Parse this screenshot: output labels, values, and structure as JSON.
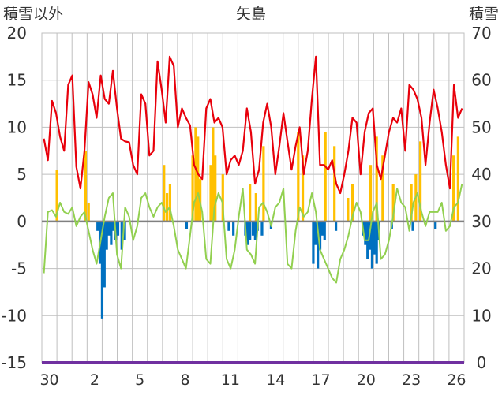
{
  "chart_data": {
    "type": "line",
    "title": "矢島",
    "left_axis_label": "積雪以外",
    "right_axis_label": "積雪",
    "y_left": {
      "min": -15,
      "max": 20,
      "ticks": [
        "20",
        "15",
        "10",
        "5",
        "0",
        "-5",
        "-10",
        "-15"
      ]
    },
    "y_right": {
      "min": 0,
      "max": 70,
      "ticks": [
        "70",
        "60",
        "50",
        "40",
        "30",
        "20",
        "10",
        "0"
      ]
    },
    "x_ticks": [
      "30",
      "2",
      "5",
      "8",
      "11",
      "14",
      "17",
      "20",
      "23",
      "26"
    ],
    "grid": true,
    "colors": {
      "red_series": "#e8000b",
      "green_series": "#92d050",
      "orange_bars": "#ffc000",
      "blue_bars": "#0070c0",
      "purple_series": "#7030a0",
      "zero_line": "#808080",
      "grid": "#bfbfbf"
    },
    "red_series_day_values": [
      8.8,
      6.5,
      12.8,
      11.5,
      9.0,
      7.5,
      14.5,
      15.5,
      5.8,
      3.5,
      7.5,
      14.8,
      13.5,
      11.0,
      15.5,
      13.0,
      12.5,
      16.0,
      12.0,
      8.8,
      8.5,
      8.4,
      6.0,
      5.0,
      13.5,
      12.5,
      7.0,
      7.5,
      17.0,
      14.0,
      10.5,
      17.5,
      16.5,
      10.0,
      12.0,
      11.0,
      10.2,
      6.0,
      5.0,
      4.5,
      12.0,
      13.0,
      10.5,
      11.0,
      10.0,
      5.0,
      6.5,
      7.0,
      6.0,
      7.5,
      12.0,
      9.5,
      4.0,
      5.5,
      10.5,
      12.5,
      10.0,
      5.0,
      8.0,
      11.5,
      8.5,
      5.5,
      8.0,
      10.0,
      5.0,
      7.5,
      13.0,
      17.5,
      6.0,
      6.0,
      5.5,
      6.5,
      4.0,
      3.0,
      5.0,
      7.5,
      11.0,
      10.5,
      5.0,
      9.5,
      11.5,
      12.0,
      6.0,
      4.5,
      7.0,
      9.5,
      11.0,
      10.5,
      12.0,
      7.5,
      14.5,
      14.0,
      13.0,
      11.0,
      6.0,
      10.5,
      14.0,
      12.0,
      9.5,
      6.0,
      3.5,
      14.5,
      11.0,
      12.0
    ],
    "green_series_day_values": [
      -5.5,
      1.0,
      1.2,
      0.5,
      2.0,
      1.0,
      0.8,
      1.5,
      -0.5,
      0.5,
      1.0,
      -1.0,
      -3.0,
      -4.5,
      -2.0,
      0.5,
      2.5,
      3.0,
      -3.5,
      -5.0,
      1.5,
      0.5,
      -2.0,
      -0.5,
      2.5,
      3.0,
      1.5,
      0.5,
      1.5,
      2.0,
      1.0,
      1.5,
      -0.5,
      -3.0,
      -4.0,
      -5.0,
      -1.5,
      2.0,
      3.0,
      1.0,
      -4.0,
      -4.5,
      1.5,
      3.0,
      2.0,
      -4.0,
      -5.0,
      -3.0,
      0.5,
      3.5,
      -3.0,
      -3.5,
      -4.5,
      1.5,
      2.0,
      1.0,
      -0.5,
      1.5,
      2.0,
      3.5,
      -4.5,
      -5.0,
      -1.0,
      1.5,
      0.5,
      1.0,
      3.0,
      1.0,
      -3.0,
      -4.0,
      -5.0,
      -6.0,
      -6.5,
      -4.0,
      -3.0,
      -1.5,
      0.5,
      2.0,
      1.0,
      -2.0,
      -2.0,
      1.0,
      2.0,
      -4.0,
      -3.5,
      -2.0,
      0.5,
      3.5,
      2.0,
      1.5,
      -1.0,
      2.0,
      3.0,
      1.0,
      -0.5,
      1.0,
      1.0,
      1.0,
      2.0,
      -1.0,
      -0.5,
      1.5,
      2.0,
      4.0
    ],
    "orange_bars": [
      {
        "day": 1.0,
        "value": 5.5
      },
      {
        "day": 2.9,
        "value": 7.5
      },
      {
        "day": 3.1,
        "value": 2.0
      },
      {
        "day": 8.1,
        "value": 6.0
      },
      {
        "day": 8.3,
        "value": 3.0
      },
      {
        "day": 8.5,
        "value": 4.0
      },
      {
        "day": 10.0,
        "value": 7.0
      },
      {
        "day": 10.2,
        "value": 10.0
      },
      {
        "day": 10.35,
        "value": 9.0
      },
      {
        "day": 10.5,
        "value": 4.5
      },
      {
        "day": 11.2,
        "value": 6.0
      },
      {
        "day": 11.35,
        "value": 10.0
      },
      {
        "day": 11.5,
        "value": 7.0
      },
      {
        "day": 12.0,
        "value": 5.0
      },
      {
        "day": 13.8,
        "value": 4.0
      },
      {
        "day": 14.2,
        "value": 3.0
      },
      {
        "day": 14.7,
        "value": 8.0
      },
      {
        "day": 17.0,
        "value": 9.5
      },
      {
        "day": 17.3,
        "value": 7.0
      },
      {
        "day": 18.8,
        "value": 9.5
      },
      {
        "day": 19.4,
        "value": 8.0
      },
      {
        "day": 20.3,
        "value": 2.5
      },
      {
        "day": 20.6,
        "value": 4.0
      },
      {
        "day": 21.8,
        "value": 6.0
      },
      {
        "day": 22.2,
        "value": 9.0
      },
      {
        "day": 22.6,
        "value": 7.0
      },
      {
        "day": 23.3,
        "value": 4.0
      },
      {
        "day": 24.5,
        "value": 4.0
      },
      {
        "day": 24.8,
        "value": 5.0
      },
      {
        "day": 25.1,
        "value": 8.5
      },
      {
        "day": 27.3,
        "value": 7.0
      },
      {
        "day": 27.6,
        "value": 9.0
      }
    ],
    "blue_bars": [
      {
        "day": 3.7,
        "value": -1.0
      },
      {
        "day": 3.85,
        "value": -4.5
      },
      {
        "day": 4.0,
        "value": -10.3
      },
      {
        "day": 4.15,
        "value": -7.0
      },
      {
        "day": 4.3,
        "value": -3.0
      },
      {
        "day": 4.45,
        "value": -1.5
      },
      {
        "day": 4.6,
        "value": -2.5
      },
      {
        "day": 4.75,
        "value": -1.0
      },
      {
        "day": 4.9,
        "value": -2.0
      },
      {
        "day": 5.05,
        "value": -1.5
      },
      {
        "day": 5.3,
        "value": -3.0
      },
      {
        "day": 5.5,
        "value": -2.0
      },
      {
        "day": 9.6,
        "value": -0.8
      },
      {
        "day": 12.4,
        "value": -1.0
      },
      {
        "day": 12.7,
        "value": -1.5
      },
      {
        "day": 13.5,
        "value": -1.5
      },
      {
        "day": 13.65,
        "value": -2.5
      },
      {
        "day": 13.8,
        "value": -2.0
      },
      {
        "day": 14.0,
        "value": -1.5
      },
      {
        "day": 14.15,
        "value": -2.0
      },
      {
        "day": 14.3,
        "value": -1.0
      },
      {
        "day": 14.6,
        "value": -1.5
      },
      {
        "day": 15.2,
        "value": -0.8
      },
      {
        "day": 18.0,
        "value": -4.5
      },
      {
        "day": 18.15,
        "value": -2.5
      },
      {
        "day": 18.3,
        "value": -5.0
      },
      {
        "day": 18.45,
        "value": -3.0
      },
      {
        "day": 18.6,
        "value": -1.5
      },
      {
        "day": 18.75,
        "value": -2.0
      },
      {
        "day": 19.5,
        "value": -1.0
      },
      {
        "day": 21.3,
        "value": -1.5
      },
      {
        "day": 21.45,
        "value": -2.5
      },
      {
        "day": 21.6,
        "value": -4.0
      },
      {
        "day": 21.75,
        "value": -3.0
      },
      {
        "day": 21.9,
        "value": -5.0
      },
      {
        "day": 22.05,
        "value": -3.5
      },
      {
        "day": 22.2,
        "value": -4.5
      },
      {
        "day": 22.35,
        "value": -2.0
      },
      {
        "day": 23.2,
        "value": -0.8
      },
      {
        "day": 24.6,
        "value": -1.0
      },
      {
        "day": 26.1,
        "value": -0.8
      }
    ],
    "purple_series_snow_depth": 0
  }
}
